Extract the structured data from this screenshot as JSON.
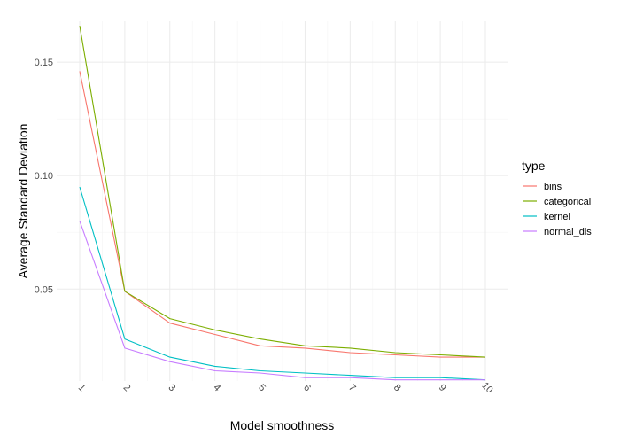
{
  "chart_data": {
    "type": "line",
    "title": "",
    "xlabel": "Model smoothness",
    "ylabel": "Average Standard Deviation",
    "x": [
      1,
      2,
      3,
      4,
      5,
      6,
      7,
      8,
      9,
      10
    ],
    "xlim": [
      1,
      10
    ],
    "ylim": [
      0.0095,
      0.168
    ],
    "yticks": [
      0.05,
      0.1,
      0.15
    ],
    "ytick_labels": [
      "0.05",
      "0.10",
      "0.15"
    ],
    "grid": true,
    "legend": {
      "title": "type",
      "placement": "right"
    },
    "series": [
      {
        "name": "bins",
        "color": "#F8766D",
        "values": [
          0.146,
          0.049,
          0.035,
          0.03,
          0.025,
          0.024,
          0.022,
          0.021,
          0.02,
          0.02
        ]
      },
      {
        "name": "categorical",
        "color": "#7CAE00",
        "values": [
          0.166,
          0.049,
          0.037,
          0.032,
          0.028,
          0.025,
          0.024,
          0.022,
          0.021,
          0.02
        ]
      },
      {
        "name": "kernel",
        "color": "#00BFC4",
        "values": [
          0.095,
          0.028,
          0.02,
          0.016,
          0.014,
          0.013,
          0.012,
          0.011,
          0.011,
          0.01
        ]
      },
      {
        "name": "normal_dis",
        "color": "#C77CFF",
        "values": [
          0.08,
          0.024,
          0.018,
          0.014,
          0.013,
          0.011,
          0.011,
          0.01,
          0.01,
          0.01
        ]
      }
    ]
  }
}
